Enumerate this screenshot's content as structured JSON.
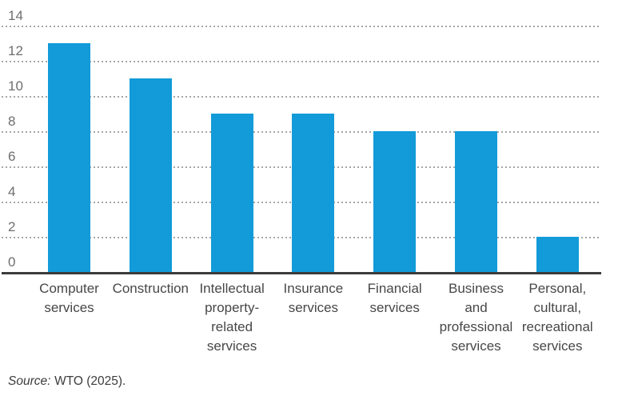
{
  "chart_data": {
    "type": "bar",
    "title": "",
    "xlabel": "",
    "ylabel": "",
    "categories": [
      "Computer services",
      "Construction",
      "Intellectual property-related services",
      "Insurance services",
      "Financial services",
      "Business and professional services",
      "Personal, cultural, recreational services"
    ],
    "category_lines": [
      [
        "Computer",
        "services"
      ],
      [
        "Construction"
      ],
      [
        "Intellectual",
        "property-",
        "related",
        "services"
      ],
      [
        "Insurance",
        "services"
      ],
      [
        "Financial",
        "services"
      ],
      [
        "Business",
        "and",
        "professional",
        "services"
      ],
      [
        "Personal,",
        "cultural,",
        "recreational",
        "services"
      ]
    ],
    "values": [
      13,
      11,
      9,
      9,
      8,
      8,
      2
    ],
    "ylim": [
      0,
      14
    ],
    "yticks": [
      0,
      2,
      4,
      6,
      8,
      10,
      12,
      14
    ],
    "grid": "horizontal-dotted",
    "legend": "none",
    "bar_color": "#129bd8"
  },
  "source": {
    "italic": "Source:",
    "text": "WTO (2025)."
  }
}
